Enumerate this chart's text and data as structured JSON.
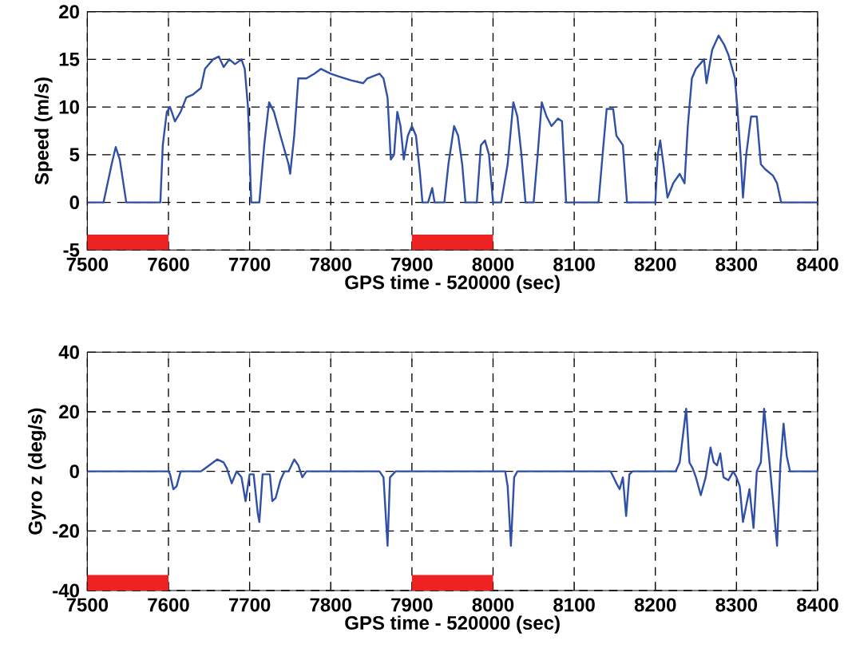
{
  "chart_data": [
    {
      "type": "line",
      "xlabel": "GPS time - 520000 (sec)",
      "ylabel": "Speed (m/s)",
      "xlim": [
        7500,
        8400
      ],
      "ylim": [
        -5,
        20
      ],
      "xticks": [
        7500,
        7600,
        7700,
        7800,
        7900,
        8000,
        8100,
        8200,
        8300,
        8400
      ],
      "yticks": [
        -5,
        0,
        5,
        10,
        15,
        20
      ],
      "grid": true,
      "bands": [
        {
          "axis": "x",
          "from": 7500,
          "to": 7600,
          "color": "#ee2222"
        },
        {
          "axis": "x",
          "from": 7900,
          "to": 8000,
          "color": "#ee2222"
        }
      ],
      "series": [
        {
          "color": "#3050a8",
          "x": [
            7500,
            7520,
            7530,
            7535,
            7540,
            7548,
            7590,
            7593,
            7598,
            7602,
            7608,
            7615,
            7622,
            7630,
            7640,
            7645,
            7655,
            7662,
            7668,
            7675,
            7682,
            7690,
            7694,
            7698,
            7702,
            7712,
            7718,
            7724,
            7730,
            7738,
            7748,
            7750,
            7755,
            7760,
            7770,
            7780,
            7788,
            7800,
            7810,
            7825,
            7840,
            7845,
            7860,
            7865,
            7870,
            7874,
            7878,
            7882,
            7886,
            7890,
            7895,
            7900,
            7905,
            7910,
            7913,
            7920,
            7925,
            7928,
            7940,
            7945,
            7952,
            7957,
            7962,
            7966,
            7980,
            7985,
            7990,
            7995,
            8000,
            8010,
            8018,
            8025,
            8030,
            8035,
            8040,
            8050,
            8055,
            8060,
            8066,
            8072,
            8080,
            8085,
            8090,
            8130,
            8135,
            8140,
            8148,
            8152,
            8160,
            8165,
            8200,
            8203,
            8206,
            8210,
            8215,
            8222,
            8230,
            8236,
            8240,
            8245,
            8250,
            8255,
            8260,
            8263,
            8270,
            8278,
            8285,
            8290,
            8298,
            8301,
            8305,
            8308,
            8312,
            8318,
            8325,
            8330,
            8335,
            8345,
            8350,
            8355,
            8400
          ],
          "values": [
            0,
            0,
            4,
            5.8,
            4.5,
            0,
            0,
            6,
            9.5,
            10,
            8.5,
            9.5,
            11,
            11.3,
            12,
            14,
            15,
            15.3,
            14.2,
            15,
            14.5,
            15,
            14,
            10,
            0,
            0,
            6,
            10.5,
            9.5,
            7,
            4,
            3,
            7,
            13,
            13,
            13.5,
            14,
            13.5,
            13.2,
            12.8,
            12.5,
            13,
            13.5,
            13,
            11,
            4.5,
            5,
            9.5,
            8,
            4.5,
            7,
            8,
            7,
            3,
            0,
            0,
            1.5,
            0,
            0,
            4,
            8,
            7,
            4,
            0,
            0,
            6,
            6.5,
            5,
            0,
            0,
            4,
            10.5,
            9,
            5,
            0,
            0,
            5,
            10.5,
            9,
            8,
            8.8,
            8.5,
            0,
            0,
            5,
            9.8,
            9.8,
            7,
            6,
            0,
            0,
            5,
            6.5,
            4,
            0.5,
            2,
            3,
            2,
            8,
            13,
            14,
            14.5,
            15,
            12.5,
            16,
            17.5,
            16.5,
            15.5,
            13,
            10,
            5,
            0.5,
            5,
            9,
            9,
            4,
            3.5,
            2.8,
            2,
            0,
            0
          ]
        }
      ]
    },
    {
      "type": "line",
      "xlabel": "GPS time - 520000 (sec)",
      "ylabel": "Gyro z (deg/s)",
      "xlim": [
        7500,
        8400
      ],
      "ylim": [
        -40,
        40
      ],
      "xticks": [
        7500,
        7600,
        7700,
        7800,
        7900,
        8000,
        8100,
        8200,
        8300,
        8400
      ],
      "yticks": [
        -40,
        -20,
        0,
        20,
        40
      ],
      "grid": true,
      "bands": [
        {
          "axis": "x",
          "from": 7500,
          "to": 7600,
          "color": "#ee2222"
        },
        {
          "axis": "x",
          "from": 7900,
          "to": 8000,
          "color": "#ee2222"
        }
      ],
      "series": [
        {
          "color": "#3050a8",
          "x": [
            7500,
            7600,
            7602,
            7606,
            7610,
            7615,
            7640,
            7650,
            7660,
            7668,
            7672,
            7678,
            7684,
            7690,
            7695,
            7700,
            7705,
            7710,
            7712,
            7716,
            7725,
            7728,
            7732,
            7738,
            7743,
            7748,
            7755,
            7760,
            7765,
            7770,
            7860,
            7865,
            7870,
            7873,
            7880,
            8015,
            8018,
            8022,
            8026,
            8030,
            8145,
            8152,
            8156,
            8160,
            8164,
            8168,
            8172,
            8225,
            8230,
            8238,
            8242,
            8246,
            8250,
            8256,
            8262,
            8268,
            8272,
            8276,
            8280,
            8284,
            8290,
            8296,
            8300,
            8304,
            8308,
            8316,
            8321,
            8325,
            8330,
            8334,
            8340,
            8350,
            8354,
            8358,
            8362,
            8366,
            8400
          ],
          "values": [
            0,
            0,
            -1,
            -6,
            -5,
            0,
            0,
            2,
            4,
            3,
            1,
            -4,
            0,
            -2,
            -10,
            -1,
            -1,
            -14,
            -17,
            -1,
            -1,
            -10,
            -9,
            -3,
            0,
            0,
            4,
            2,
            -2,
            0,
            0,
            -2,
            -25,
            -2,
            0,
            0,
            -5,
            -25,
            -2,
            0,
            0,
            -4,
            -6,
            -2,
            -15,
            -1,
            0,
            0,
            3,
            21,
            3,
            1,
            -2,
            -8,
            -2,
            8,
            3,
            2,
            6,
            -2,
            -3,
            0,
            -2,
            -5,
            -17,
            -6,
            -19,
            0,
            3,
            21,
            5,
            -25,
            2,
            16,
            5,
            0,
            0
          ]
        }
      ]
    }
  ]
}
